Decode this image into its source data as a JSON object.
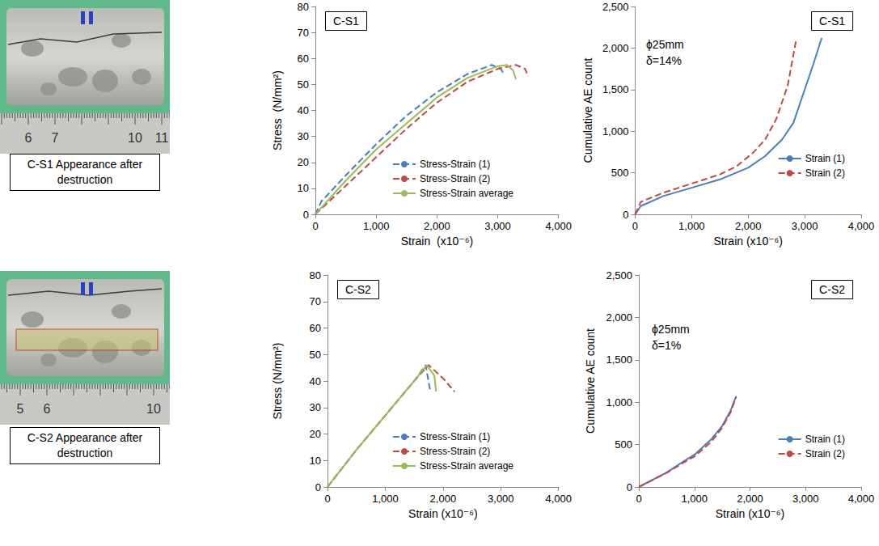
{
  "chart_data": [
    {
      "type": "line",
      "title": "C-S1",
      "xlabel": "Strain  (x10⁻⁶)",
      "ylabel": "Stress  (N/mm²)",
      "xlim": [
        0,
        4000
      ],
      "xticks": [
        0,
        1000,
        2000,
        3000,
        4000
      ],
      "ylim": [
        0,
        80
      ],
      "yticks": [
        0,
        10,
        20,
        30,
        40,
        50,
        60,
        70,
        80
      ],
      "grid": false,
      "legend": "lower right",
      "series": [
        {
          "name": "Stress-Strain (1)",
          "color": "#4a7ebb",
          "line_style": "dashed",
          "x": [
            0,
            100,
            500,
            1000,
            1500,
            2000,
            2500,
            2900,
            3050,
            3100
          ],
          "values": [
            0,
            5,
            15,
            27,
            38,
            47,
            54,
            57.5,
            56,
            54
          ]
        },
        {
          "name": "Stress-Strain (2)",
          "color": "#be4b48",
          "line_style": "dashed",
          "x": [
            0,
            500,
            1000,
            1500,
            2000,
            2500,
            3000,
            3300,
            3450,
            3500
          ],
          "values": [
            0,
            11,
            22,
            33,
            43,
            51,
            56,
            57.5,
            56,
            53
          ]
        },
        {
          "name": "Stress-Strain average",
          "color": "#9bbb59",
          "line_style": "solid",
          "x": [
            0,
            500,
            1000,
            1500,
            2000,
            2500,
            3000,
            3150,
            3250,
            3300
          ],
          "values": [
            0,
            13,
            25,
            35,
            45,
            52.5,
            57,
            57.5,
            55.5,
            52
          ]
        }
      ]
    },
    {
      "type": "line",
      "title": "C-S1",
      "xlabel": "Strain (x10⁻⁶)",
      "ylabel": "Cumulative AE count",
      "xlim": [
        0,
        4000
      ],
      "xticks": [
        0,
        1000,
        2000,
        3000,
        4000
      ],
      "ylim": [
        0,
        2500
      ],
      "yticks": [
        0,
        500,
        1000,
        1500,
        2000,
        2500
      ],
      "grid": false,
      "legend": "lower right",
      "annotations": [
        "ϕ25mm",
        "δ=14%"
      ],
      "series": [
        {
          "name": "Strain (1)",
          "color": "#4a7ebb",
          "line_style": "solid",
          "x": [
            0,
            100,
            500,
            1000,
            1500,
            2000,
            2300,
            2600,
            2800,
            3000,
            3150,
            3300
          ],
          "values": [
            0,
            100,
            220,
            320,
            420,
            560,
            700,
            900,
            1100,
            1500,
            1800,
            2120
          ]
        },
        {
          "name": "Strain (2)",
          "color": "#be4b48",
          "line_style": "dashed",
          "x": [
            0,
            100,
            500,
            1000,
            1500,
            1800,
            2100,
            2300,
            2500,
            2700,
            2850
          ],
          "values": [
            0,
            150,
            260,
            370,
            480,
            580,
            750,
            900,
            1150,
            1550,
            2100
          ]
        }
      ]
    },
    {
      "type": "line",
      "title": "C-S2",
      "xlabel": "Strain (x10⁻⁶)",
      "ylabel": "Stress (N/mm²)",
      "xlim": [
        0,
        4000
      ],
      "xticks": [
        0,
        1000,
        2000,
        3000,
        4000
      ],
      "ylim": [
        0,
        80
      ],
      "yticks": [
        0,
        10,
        20,
        30,
        40,
        50,
        60,
        70,
        80
      ],
      "grid": false,
      "legend": "lower right",
      "series": [
        {
          "name": "Stress-Strain (1)",
          "color": "#4a7ebb",
          "line_style": "dashed",
          "x": [
            0,
            500,
            1000,
            1500,
            1700,
            1780
          ],
          "values": [
            0,
            14,
            27,
            40,
            46,
            36
          ]
        },
        {
          "name": "Stress-Strain (2)",
          "color": "#be4b48",
          "line_style": "dashed",
          "x": [
            0,
            500,
            1000,
            1500,
            1750,
            2000,
            2200
          ],
          "values": [
            0,
            14,
            27,
            40,
            46,
            41,
            36
          ]
        },
        {
          "name": "Stress-Strain average",
          "color": "#9bbb59",
          "line_style": "solid",
          "x": [
            0,
            500,
            1000,
            1500,
            1720,
            1850,
            1880
          ],
          "values": [
            0,
            14,
            27,
            40,
            46,
            42,
            36
          ]
        }
      ]
    },
    {
      "type": "line",
      "title": "C-S2",
      "xlabel": "Strain (x10⁻⁶)",
      "ylabel": "Cumulative AE count",
      "xlim": [
        0,
        4000
      ],
      "xticks": [
        0,
        1000,
        2000,
        3000,
        4000
      ],
      "ylim": [
        0,
        2500
      ],
      "yticks": [
        0,
        500,
        1000,
        1500,
        2000,
        2500
      ],
      "grid": false,
      "legend": "lower right",
      "annotations": [
        "ϕ25mm",
        "δ=1%"
      ],
      "series": [
        {
          "name": "Strain (1)",
          "color": "#4a7ebb",
          "line_style": "solid",
          "x": [
            0,
            500,
            800,
            1000,
            1300,
            1500,
            1650,
            1750
          ],
          "values": [
            0,
            170,
            300,
            380,
            560,
            720,
            900,
            1070
          ]
        },
        {
          "name": "Strain (2)",
          "color": "#be4b48",
          "line_style": "dashed",
          "x": [
            0,
            500,
            800,
            1000,
            1300,
            1500,
            1650,
            1750
          ],
          "values": [
            0,
            165,
            285,
            360,
            530,
            700,
            880,
            1060
          ]
        }
      ]
    }
  ],
  "photos": [
    {
      "caption": "C-S1 Appearance after destruction",
      "ruler_labels": [
        "6",
        "7",
        "10",
        "11"
      ]
    },
    {
      "caption": "C-S2 Appearance after destruction",
      "ruler_labels": [
        "5",
        "6",
        "10"
      ]
    }
  ]
}
